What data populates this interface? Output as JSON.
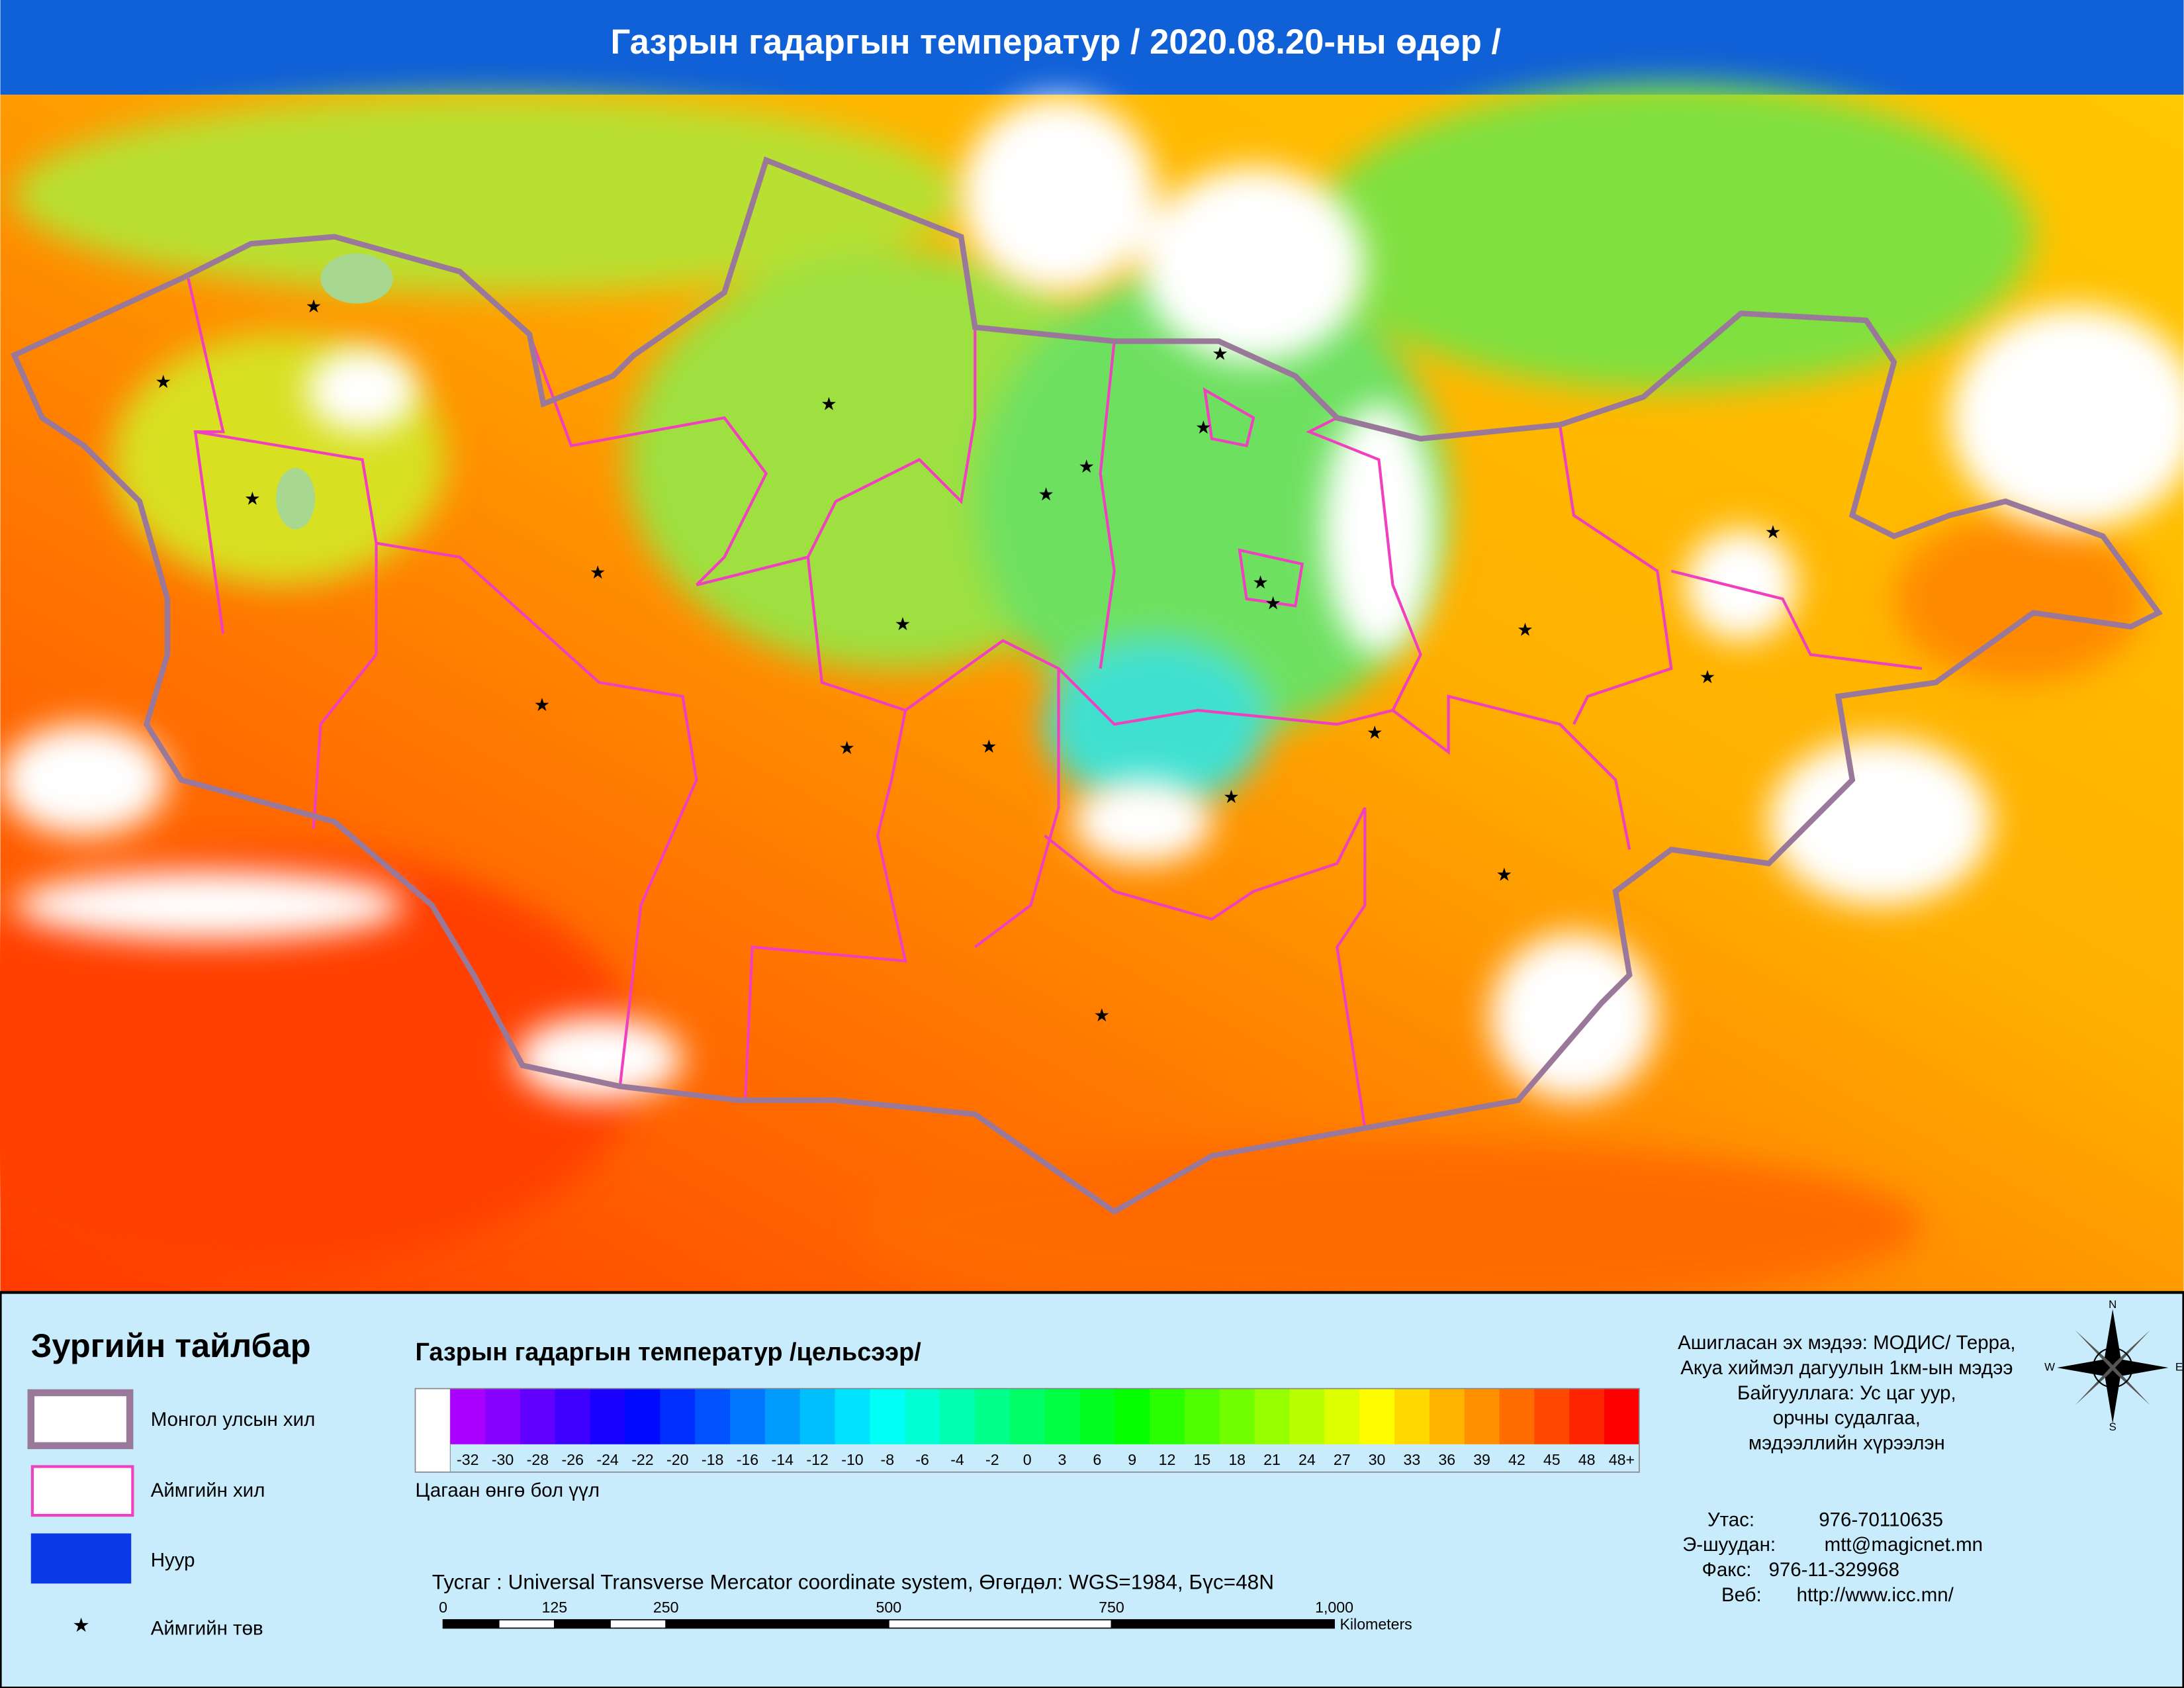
{
  "header": {
    "title": "Газрын гадаргын температур / 2020.08.20-ны өдөр /"
  },
  "legend": {
    "title": "Зургийн тайлбар",
    "items": [
      "Монгол улсын хил",
      "Аймгийн хил",
      "Нуур",
      "Аймгийн төв"
    ]
  },
  "color_scale": {
    "title": "Газрын гадаргын температур /цельсээр/",
    "labels": [
      "-32",
      "-30",
      "-28",
      "-26",
      "-24",
      "-22",
      "-20",
      "-18",
      "-16",
      "-14",
      "-12",
      "-10",
      "-8",
      "-6",
      "-4",
      "-2",
      "0",
      "3",
      "6",
      "9",
      "12",
      "15",
      "18",
      "21",
      "24",
      "27",
      "30",
      "33",
      "36",
      "39",
      "42",
      "45",
      "48",
      "48+"
    ],
    "note": "Цагаан өнгө бол үүл"
  },
  "projection": "Тусгаг : Universal Transverse Mercator coordinate system, Өгөгдөл: WGS=1984, Бүс=48N",
  "scale_bar": {
    "ticks": [
      "0",
      "125",
      "250",
      "500",
      "750",
      "1,000"
    ],
    "unit": "Kilometers"
  },
  "source": [
    "Ашигласан эх мэдээ: МОДИС/ Терра,",
    "Акуа хиймэл дагуулын 1км-ын мэдээ",
    "Байгууллага: Ус цаг уур,",
    "орчны судалгаа,",
    "мэдээллийн хүрээлэн"
  ],
  "contacts": [
    {
      "label": "Утас:",
      "value": "976-70110635"
    },
    {
      "label": "Э-шуудан:",
      "value": "mtt@magicnet.mn"
    },
    {
      "label": "Факс:",
      "value": "976-11-329968"
    },
    {
      "label": "Веб:",
      "value": "http://www.icc.mn/"
    }
  ],
  "compass": {
    "n": "N",
    "e": "E",
    "s": "S",
    "w": "W"
  }
}
